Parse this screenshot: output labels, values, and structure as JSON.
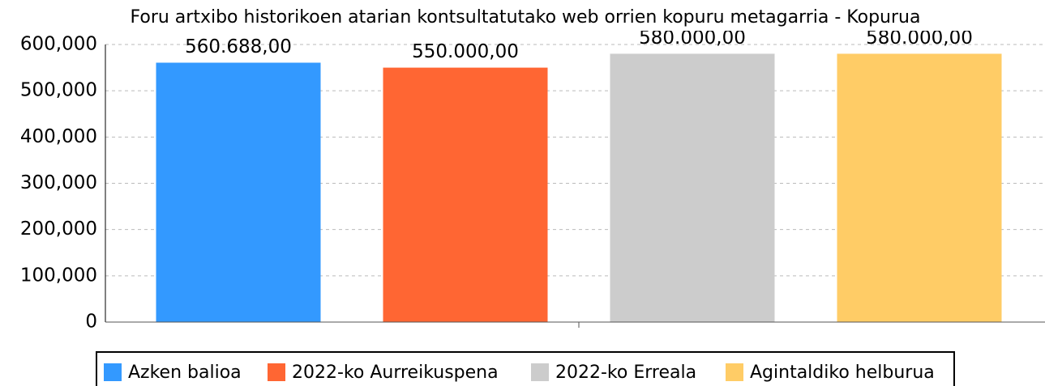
{
  "chart_data": {
    "type": "bar",
    "title": "Foru artxibo historikoen atarian kontsultatutako web orrien kopuru metagarria - Kopurua",
    "series": [
      {
        "name": "Azken balioa",
        "color": "#3399ff",
        "values": [
          560688
        ],
        "value_labels": [
          "560.688,00"
        ]
      },
      {
        "name": "2022-ko Aurreikuspena",
        "color": "#ff6633",
        "values": [
          550000
        ],
        "value_labels": [
          "550.000,00"
        ]
      },
      {
        "name": "2022-ko Erreala",
        "color": "#cccccc",
        "values": [
          580000
        ],
        "value_labels": [
          "580.000,00"
        ]
      },
      {
        "name": "Agintaldiko helburua",
        "color": "#ffcc66",
        "values": [
          580000
        ],
        "value_labels": [
          "580.000,00"
        ]
      }
    ],
    "ylim": [
      0,
      600000
    ],
    "yticks": [
      0,
      {
        "value": 100000,
        "label": "100,000"
      },
      {
        "value": 200000,
        "label": "200,000"
      },
      {
        "value": 300000,
        "label": "300,000"
      },
      {
        "value": 400000,
        "label": "400,000"
      },
      {
        "value": 500000,
        "label": "500,000"
      },
      {
        "value": 600000,
        "label": "600,000"
      }
    ],
    "grid": true,
    "legend": "bottom"
  }
}
